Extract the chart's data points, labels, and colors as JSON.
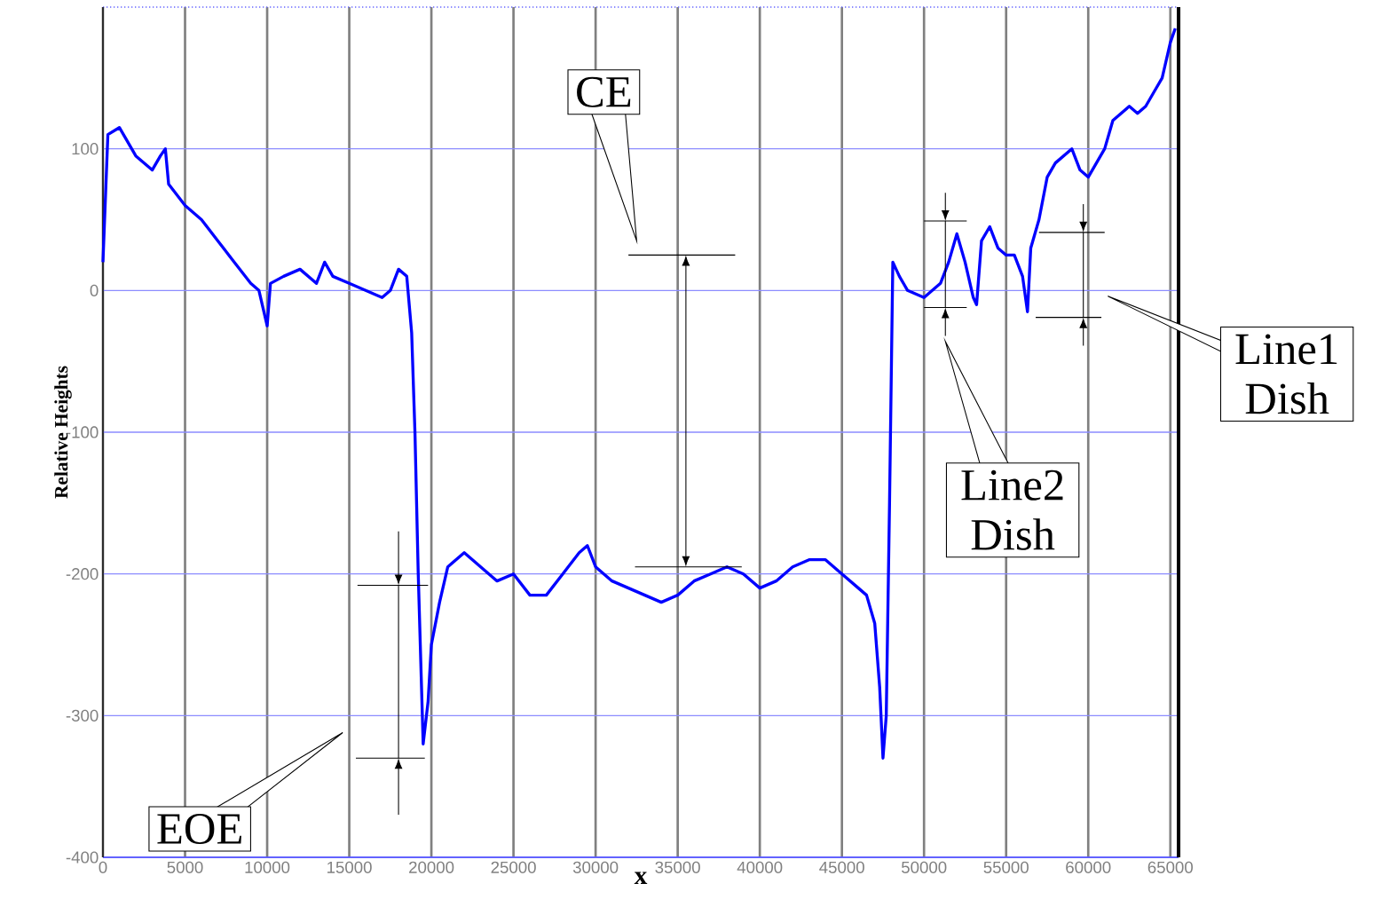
{
  "chart_data": {
    "type": "line",
    "xlabel": "x",
    "ylabel": "Relative Heights",
    "color": "#0000ff",
    "grid": true,
    "xlim": [
      0,
      65500
    ],
    "ylim": [
      -400,
      200
    ],
    "xticks": [
      0,
      5000,
      10000,
      15000,
      20000,
      25000,
      30000,
      35000,
      40000,
      45000,
      50000,
      55000,
      60000,
      65000
    ],
    "yticks": [
      -400,
      -300,
      -200,
      -100,
      0,
      100
    ],
    "x": [
      0,
      100,
      300,
      1000,
      2000,
      3000,
      3500,
      3800,
      4000,
      5000,
      6000,
      7000,
      8000,
      9000,
      9500,
      10000,
      10200,
      11000,
      12000,
      13000,
      13500,
      14000,
      15000,
      16000,
      17000,
      17500,
      18000,
      18500,
      18800,
      19000,
      19200,
      19400,
      19500,
      19800,
      20000,
      20500,
      21000,
      22000,
      23000,
      24000,
      25000,
      26000,
      27000,
      28000,
      29000,
      29500,
      30000,
      31000,
      32000,
      33000,
      34000,
      35000,
      36000,
      37000,
      38000,
      39000,
      40000,
      41000,
      42000,
      43000,
      44000,
      45000,
      46000,
      46500,
      47000,
      47300,
      47500,
      47700,
      47900,
      48100,
      48500,
      49000,
      50000,
      51000,
      51500,
      52000,
      52500,
      53000,
      53200,
      53500,
      54000,
      54500,
      55000,
      55500,
      56000,
      56300,
      56500,
      57000,
      57500,
      58000,
      59000,
      59500,
      60000,
      60500,
      61000,
      61500,
      62000,
      62500,
      63000,
      63500,
      64000,
      64500,
      65000,
      65300
    ],
    "values": [
      20,
      50,
      110,
      115,
      95,
      85,
      95,
      100,
      75,
      60,
      50,
      35,
      20,
      5,
      0,
      -25,
      5,
      10,
      15,
      5,
      20,
      10,
      5,
      0,
      -5,
      0,
      15,
      10,
      -30,
      -100,
      -200,
      -280,
      -320,
      -290,
      -250,
      -220,
      -195,
      -185,
      -195,
      -205,
      -200,
      -215,
      -215,
      -200,
      -185,
      -180,
      -195,
      -205,
      -210,
      -215,
      -220,
      -215,
      -205,
      -200,
      -195,
      -200,
      -210,
      -205,
      -195,
      -190,
      -190,
      -200,
      -210,
      -215,
      -235,
      -280,
      -330,
      -300,
      -150,
      20,
      10,
      0,
      -5,
      5,
      20,
      40,
      20,
      -5,
      -10,
      35,
      45,
      30,
      25,
      25,
      10,
      -15,
      30,
      50,
      80,
      90,
      100,
      85,
      80,
      90,
      100,
      120,
      125,
      130,
      125,
      130,
      140,
      150,
      175,
      185
    ],
    "annotations": [
      "CE",
      "EOE",
      "Line2 Dish",
      "Line1 Dish"
    ]
  }
}
